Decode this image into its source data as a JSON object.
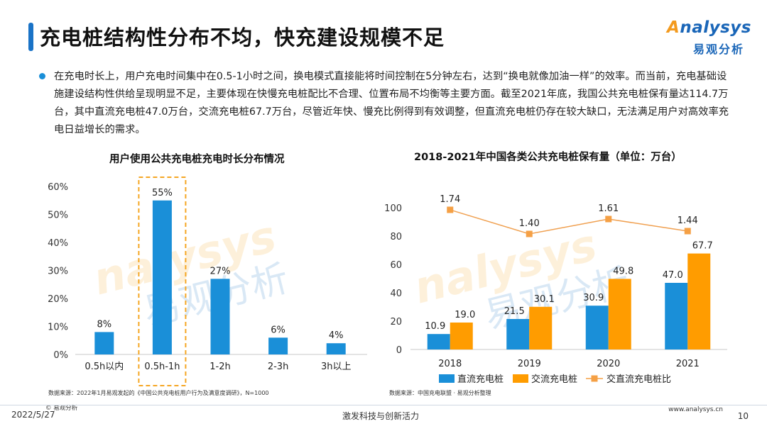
{
  "header": {
    "title": "充电桩结构性分布不均，快充建设规模不足",
    "logo_text_en": "nalysys",
    "logo_text_en_initial": "A",
    "logo_text_cn": "易观分析"
  },
  "body": {
    "paragraph": "在充电时长上，用户充电时间集中在0.5-1小时之间，换电模式直接能将时间控制在5分钟左右，达到“换电就像加油一样”的效率。而当前，充电基础设施建设结构性供给呈现明显不足，主要体现在快慢充电桩配比不合理、位置布局不均衡等主要方面。截至2021年底，我国公共充电桩保有量达114.7万台，其中直流充电桩47.0万台，交流充电桩67.7万台，尽管近年快、慢充比例得到有效调整，但直流充电桩仍存在较大缺口，无法满足用户对高效率充电日益增长的需求。"
  },
  "watermark": {
    "en": "nalysys",
    "cn": "易观分析"
  },
  "chart_data": [
    {
      "type": "bar",
      "title": "用户使用公共充电桩充电时长分布情况",
      "categories": [
        "0.5h以内",
        "0.5h-1h",
        "1-2h",
        "2-3h",
        "3h以上"
      ],
      "values": [
        8,
        55,
        27,
        6,
        4
      ],
      "value_labels": [
        "8%",
        "55%",
        "27%",
        "6%",
        "4%"
      ],
      "highlight_index": 1,
      "yticks": [
        "0%",
        "10%",
        "20%",
        "30%",
        "40%",
        "50%",
        "60%"
      ],
      "ylim": [
        0,
        60
      ],
      "grid": false,
      "color": "#1a8fd8",
      "highlight_color": "#f5a623",
      "source": "数据来源：2022年1月易观发起的《中国公共充电桩用户行为及满意度调研》，N=1000"
    },
    {
      "type": "bar",
      "title": "2018-2021年中国各类公共充电桩保有量（单位：万台）",
      "categories": [
        "2018",
        "2019",
        "2020",
        "2021"
      ],
      "series": [
        {
          "name": "直流充电桩",
          "values": [
            10.9,
            21.5,
            30.9,
            47.0
          ],
          "labels": [
            "10.9",
            "21.5",
            "30.9",
            "47.0"
          ],
          "color": "#1a8fd8"
        },
        {
          "name": "交流充电桩",
          "values": [
            19.0,
            30.1,
            49.8,
            67.7
          ],
          "labels": [
            "19.0",
            "30.1",
            "49.8",
            "67.7"
          ],
          "color": "#ff9c00"
        }
      ],
      "line_series": {
        "name": "交直流充电桩比",
        "values": [
          1.74,
          1.4,
          1.61,
          1.44
        ],
        "labels": [
          "1.74",
          "1.40",
          "1.61",
          "1.44"
        ],
        "color": "#f5a045",
        "line_color": "#f0a050"
      },
      "yticks": [
        "0",
        "20",
        "40",
        "60",
        "80",
        "100"
      ],
      "ylim": [
        0,
        100
      ],
      "grid": false,
      "legend_position": "bottom",
      "source": "数据来源：中国充电联盟 · 易观分析整理"
    }
  ],
  "footer": {
    "copyright": "© 易观分析",
    "date": "2022/5/27",
    "slogan": "激发科技与创新活力",
    "url": "www.analysys.cn",
    "page": "10"
  }
}
